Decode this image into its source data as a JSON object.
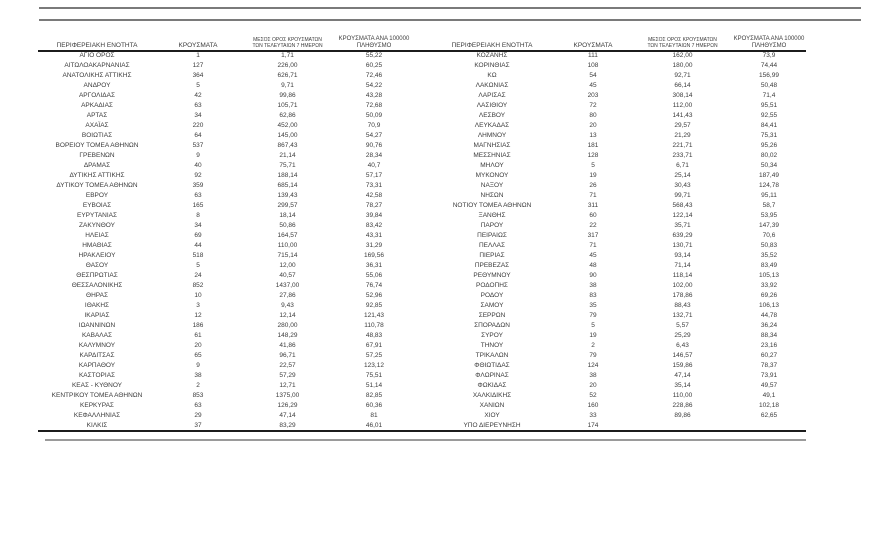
{
  "page": {
    "background": "#ffffff",
    "text_color": "#3b3b3b",
    "dark_rule_color": "#1c1c1c",
    "grey_rule_color": "#9a9a9a"
  },
  "columns": {
    "region": "ΠΕΡΙΦΕΡΕΙΑΚΗ ΕΝΟΤΗΤΑ",
    "cases": "ΚΡΟΥΣΜΑΤΑ",
    "avg7": "ΜΕΣΟΣ ΟΡΟΣ ΚΡΟΥΣΜΑΤΩΝ\nΤΩΝ ΤΕΛΕΥΤΑΙΩΝ 7 ΗΜΕΡΩΝ",
    "per100k": "ΚΡΟΥΣΜΑΤΑ ΑΝΑ 100000\nΠΛΗΘΥΣΜΟ"
  },
  "left_table": {
    "rows": [
      [
        "ΑΓΙΟ ΟΡΟΣ",
        "1",
        "1,71",
        "55,22"
      ],
      [
        "ΑΙΤΩΛΟΑΚΑΡΝΑΝΙΑΣ",
        "127",
        "226,00",
        "60,25"
      ],
      [
        "ΑΝΑΤΟΛΙΚΗΣ ΑΤΤΙΚΗΣ",
        "364",
        "626,71",
        "72,46"
      ],
      [
        "ΑΝΔΡΟΥ",
        "5",
        "9,71",
        "54,22"
      ],
      [
        "ΑΡΓΟΛΙΔΑΣ",
        "42",
        "99,86",
        "43,28"
      ],
      [
        "ΑΡΚΑΔΙΑΣ",
        "63",
        "105,71",
        "72,68"
      ],
      [
        "ΑΡΤΑΣ",
        "34",
        "62,86",
        "50,09"
      ],
      [
        "ΑΧΑΪΑΣ",
        "220",
        "452,00",
        "70,9"
      ],
      [
        "ΒΟΙΩΤΙΑΣ",
        "64",
        "145,00",
        "54,27"
      ],
      [
        "ΒΟΡΕΙΟΥ ΤΟΜΕΑ ΑΘΗΝΩΝ",
        "537",
        "867,43",
        "90,76"
      ],
      [
        "ΓΡΕΒΕΝΩΝ",
        "9",
        "21,14",
        "28,34"
      ],
      [
        "ΔΡΑΜΑΣ",
        "40",
        "75,71",
        "40,7"
      ],
      [
        "ΔΥΤΙΚΗΣ ΑΤΤΙΚΗΣ",
        "92",
        "188,14",
        "57,17"
      ],
      [
        "ΔΥΤΙΚΟΥ ΤΟΜΕΑ ΑΘΗΝΩΝ",
        "359",
        "685,14",
        "73,31"
      ],
      [
        "ΕΒΡΟΥ",
        "63",
        "139,43",
        "42,58"
      ],
      [
        "ΕΥΒΟΙΑΣ",
        "165",
        "299,57",
        "78,27"
      ],
      [
        "ΕΥΡΥΤΑΝΙΑΣ",
        "8",
        "18,14",
        "39,84"
      ],
      [
        "ΖΑΚΥΝΘΟΥ",
        "34",
        "50,86",
        "83,42"
      ],
      [
        "ΗΛΕΙΑΣ",
        "69",
        "164,57",
        "43,31"
      ],
      [
        "ΗΜΑΘΙΑΣ",
        "44",
        "110,00",
        "31,29"
      ],
      [
        "ΗΡΑΚΛΕΙΟΥ",
        "518",
        "715,14",
        "169,56"
      ],
      [
        "ΘΑΣΟΥ",
        "5",
        "12,00",
        "36,31"
      ],
      [
        "ΘΕΣΠΡΩΤΙΑΣ",
        "24",
        "40,57",
        "55,06"
      ],
      [
        "ΘΕΣΣΑΛΟΝΙΚΗΣ",
        "852",
        "1437,00",
        "76,74"
      ],
      [
        "ΘΗΡΑΣ",
        "10",
        "27,86",
        "52,96"
      ],
      [
        "ΙΘΑΚΗΣ",
        "3",
        "9,43",
        "92,85"
      ],
      [
        "ΙΚΑΡΙΑΣ",
        "12",
        "12,14",
        "121,43"
      ],
      [
        "ΙΩΑΝΝΙΝΩΝ",
        "186",
        "280,00",
        "110,78"
      ],
      [
        "ΚΑΒΑΛΑΣ",
        "61",
        "148,29",
        "48,83"
      ],
      [
        "ΚΑΛΥΜΝΟΥ",
        "20",
        "41,86",
        "67,91"
      ],
      [
        "ΚΑΡΔΙΤΣΑΣ",
        "65",
        "96,71",
        "57,25"
      ],
      [
        "ΚΑΡΠΑΘΟΥ",
        "9",
        "22,57",
        "123,12"
      ],
      [
        "ΚΑΣΤΟΡΙΑΣ",
        "38",
        "57,29",
        "75,51"
      ],
      [
        "ΚΕΑΣ - ΚΥΘΝΟΥ",
        "2",
        "12,71",
        "51,14"
      ],
      [
        "ΚΕΝΤΡΙΚΟΥ ΤΟΜΕΑ ΑΘΗΝΩΝ",
        "853",
        "1375,00",
        "82,85"
      ],
      [
        "ΚΕΡΚΥΡΑΣ",
        "63",
        "126,29",
        "60,36"
      ],
      [
        "ΚΕΦΑΛΛΗΝΙΑΣ",
        "29",
        "47,14",
        "81"
      ],
      [
        "ΚΙΛΚΙΣ",
        "37",
        "83,29",
        "46,01"
      ]
    ]
  },
  "right_table": {
    "rows": [
      [
        "ΚΟΖΑΝΗΣ",
        "111",
        "162,00",
        "73,9"
      ],
      [
        "ΚΟΡΙΝΘΙΑΣ",
        "108",
        "180,00",
        "74,44"
      ],
      [
        "ΚΩ",
        "54",
        "92,71",
        "156,99"
      ],
      [
        "ΛΑΚΩΝΙΑΣ",
        "45",
        "66,14",
        "50,48"
      ],
      [
        "ΛΑΡΙΣΑΣ",
        "203",
        "308,14",
        "71,4"
      ],
      [
        "ΛΑΣΙΘΙΟΥ",
        "72",
        "112,00",
        "95,51"
      ],
      [
        "ΛΕΣΒΟΥ",
        "80",
        "141,43",
        "92,55"
      ],
      [
        "ΛΕΥΚΑΔΑΣ",
        "20",
        "29,57",
        "84,41"
      ],
      [
        "ΛΗΜΝΟΥ",
        "13",
        "21,29",
        "75,31"
      ],
      [
        "ΜΑΓΝΗΣΙΑΣ",
        "181",
        "221,71",
        "95,26"
      ],
      [
        "ΜΕΣΣΗΝΙΑΣ",
        "128",
        "233,71",
        "80,02"
      ],
      [
        "ΜΗΛΟΥ",
        "5",
        "6,71",
        "50,34"
      ],
      [
        "ΜΥΚΟΝΟΥ",
        "19",
        "25,14",
        "187,49"
      ],
      [
        "ΝΑΞΟΥ",
        "26",
        "30,43",
        "124,78"
      ],
      [
        "ΝΗΣΩΝ",
        "71",
        "99,71",
        "95,11"
      ],
      [
        "ΝΟΤΙΟΥ ΤΟΜΕΑ ΑΘΗΝΩΝ",
        "311",
        "568,43",
        "58,7"
      ],
      [
        "ΞΑΝΘΗΣ",
        "60",
        "122,14",
        "53,95"
      ],
      [
        "ΠΑΡΟΥ",
        "22",
        "35,71",
        "147,39"
      ],
      [
        "ΠΕΙΡΑΙΩΣ",
        "317",
        "639,29",
        "70,6"
      ],
      [
        "ΠΕΛΛΑΣ",
        "71",
        "130,71",
        "50,83"
      ],
      [
        "ΠΙΕΡΙΑΣ",
        "45",
        "93,14",
        "35,52"
      ],
      [
        "ΠΡΕΒΕΖΑΣ",
        "48",
        "71,14",
        "83,49"
      ],
      [
        "ΡΕΘΥΜΝΟΥ",
        "90",
        "118,14",
        "105,13"
      ],
      [
        "ΡΟΔΟΠΗΣ",
        "38",
        "102,00",
        "33,92"
      ],
      [
        "ΡΟΔΟΥ",
        "83",
        "178,86",
        "69,26"
      ],
      [
        "ΣΑΜΟΥ",
        "35",
        "88,43",
        "106,13"
      ],
      [
        "ΣΕΡΡΩΝ",
        "79",
        "132,71",
        "44,78"
      ],
      [
        "ΣΠΟΡΑΔΩΝ",
        "5",
        "5,57",
        "36,24"
      ],
      [
        "ΣΥΡΟΥ",
        "19",
        "25,29",
        "88,34"
      ],
      [
        "ΤΗΝΟΥ",
        "2",
        "6,43",
        "23,16"
      ],
      [
        "ΤΡΙΚΑΛΩΝ",
        "79",
        "146,57",
        "60,27"
      ],
      [
        "ΦΘΙΩΤΙΔΑΣ",
        "124",
        "159,86",
        "78,37"
      ],
      [
        "ΦΛΩΡΙΝΑΣ",
        "38",
        "47,14",
        "73,91"
      ],
      [
        "ΦΩΚΙΔΑΣ",
        "20",
        "35,14",
        "49,57"
      ],
      [
        "ΧΑΛΚΙΔΙΚΗΣ",
        "52",
        "110,00",
        "49,1"
      ],
      [
        "ΧΑΝΙΩΝ",
        "160",
        "228,86",
        "102,18"
      ],
      [
        "ΧΙΟΥ",
        "33",
        "89,86",
        "62,65"
      ],
      [
        "ΥΠΟ ΔΙΕΡΕΥΝΗΣΗ",
        "174",
        "",
        ""
      ]
    ]
  }
}
